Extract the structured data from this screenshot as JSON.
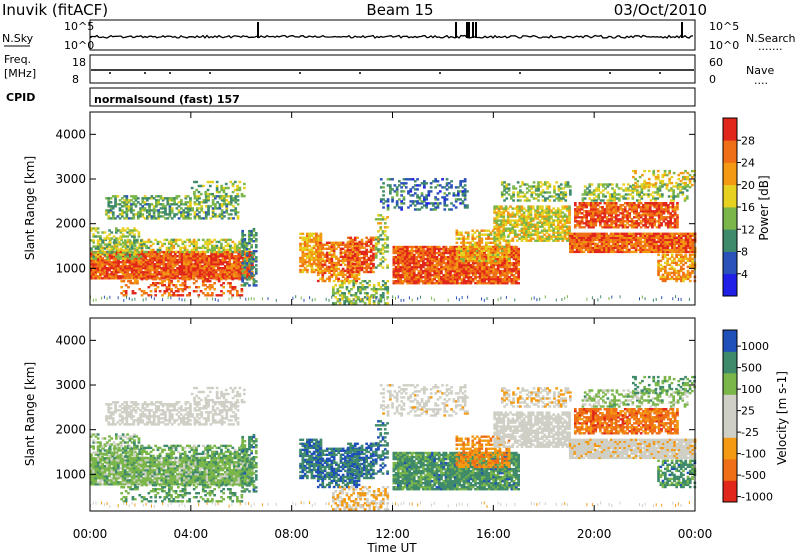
{
  "header": {
    "station": "Inuvik (fitACF)",
    "beam": "Beam 15",
    "date": "03/Oct/2010"
  },
  "strip_labels": {
    "nsky": "N.Sky",
    "nsky_top": "10^5",
    "nsky_bottom": "10^0",
    "nsearch": "N.Search",
    "nsearch_top": "10^5",
    "nsearch_bottom": "10^0",
    "freq": "Freq.",
    "freq_unit": "[MHz]",
    "freq_top": "18",
    "freq_bottom": "8",
    "nave": "Nave",
    "nave_top": "60",
    "nave_bottom": "0",
    "cpid": "CPID",
    "cpid_value": "normalsound (fast) 157"
  },
  "colors": {
    "power": [
      "#1f1fe8",
      "#2a52b8",
      "#3f8a6a",
      "#7ab64a",
      "#e6d020",
      "#f39a12",
      "#ef6f16",
      "#e1261b"
    ],
    "velocity": [
      "#e1261b",
      "#ef6f16",
      "#f39a12",
      "#cfcfc5",
      "#cfcfc5",
      "#7ab64a",
      "#3f8a6a",
      "#1f4fb8"
    ],
    "trace": "#000000"
  },
  "chart_data": [
    {
      "type": "heatmap",
      "name": "power",
      "ylabel": "Slant Range [km]",
      "yticks": [
        "1000",
        "2000",
        "3000",
        "4000"
      ],
      "xticks": [
        "00:00",
        "04:00",
        "08:00",
        "12:00",
        "16:00",
        "20:00",
        "00:00"
      ],
      "xlim_hours": [
        0,
        24
      ],
      "ylim_km": [
        180,
        4500
      ],
      "colorbar": {
        "label": "Power [dB]",
        "ticks": [
          "4",
          "8",
          "12",
          "16",
          "20",
          "24",
          "28"
        ],
        "range": [
          0,
          32
        ]
      }
    },
    {
      "type": "heatmap",
      "name": "velocity",
      "ylabel": "Slant Range [km]",
      "yticks": [
        "1000",
        "2000",
        "3000",
        "4000"
      ],
      "xticks": [
        "00:00",
        "04:00",
        "08:00",
        "12:00",
        "16:00",
        "20:00",
        "00:00"
      ],
      "xlabel": "Time UT",
      "xlim_hours": [
        0,
        24
      ],
      "ylim_km": [
        180,
        4500
      ],
      "colorbar": {
        "label": "Velocity [m s-1]",
        "ticks": [
          "1000",
          "500",
          "100",
          "25",
          "-25",
          "-100",
          "-500",
          "-1000"
        ]
      }
    }
  ]
}
